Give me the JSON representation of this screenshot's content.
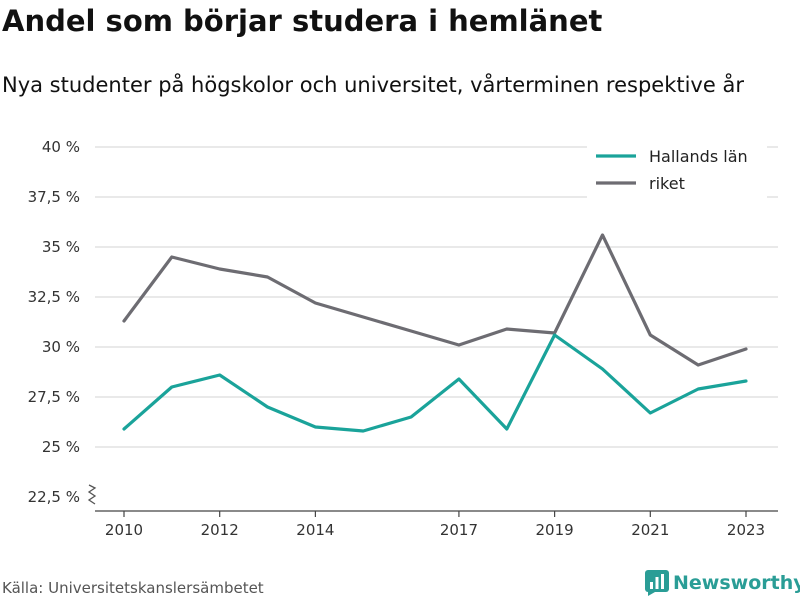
{
  "header": {
    "title": "Andel som börjar studera i hemlänet",
    "subtitle": "Nya studenter på högskolor och universitet, vårterminen respektive år"
  },
  "footer": {
    "source": "Källa: Universitetskanslersämbetet",
    "brand": "Newsworthy",
    "brand_color": "#2a9d96"
  },
  "chart_data": {
    "type": "line",
    "title": "Andel som börjar studera i hemlänet",
    "subtitle": "Nya studenter på högskolor och universitet, vårterminen respektive år",
    "xlabel": "",
    "ylabel": "",
    "x": [
      2010,
      2011,
      2012,
      2013,
      2014,
      2015,
      2016,
      2017,
      2018,
      2019,
      2020,
      2021,
      2022,
      2023
    ],
    "x_tick_labels": [
      "2010",
      "2012",
      "2014",
      "2017",
      "2019",
      "2021",
      "2023"
    ],
    "x_tick_values": [
      2010,
      2012,
      2014,
      2017,
      2019,
      2021,
      2023
    ],
    "y_tick_values": [
      22.5,
      25,
      27.5,
      30,
      32.5,
      35,
      37.5,
      40
    ],
    "y_tick_labels": [
      "22,5 %",
      "25 %",
      "27,5 %",
      "30 %",
      "32,5 %",
      "35 %",
      "37,5 %",
      "40 %"
    ],
    "ylim": [
      22.5,
      40
    ],
    "y_axis_break": true,
    "grid": "horizontal",
    "legend_position": "top-right",
    "series": [
      {
        "name": "Hallands län",
        "color": "#1aa39a",
        "values": [
          25.9,
          28.0,
          28.6,
          27.0,
          26.0,
          25.8,
          26.5,
          28.4,
          25.9,
          30.6,
          28.9,
          26.7,
          27.9,
          28.3
        ]
      },
      {
        "name": "riket",
        "color": "#6d6c72",
        "values": [
          31.3,
          34.5,
          33.9,
          33.5,
          32.2,
          31.5,
          30.8,
          30.1,
          30.9,
          30.7,
          35.6,
          30.6,
          29.1,
          29.9
        ]
      }
    ]
  }
}
